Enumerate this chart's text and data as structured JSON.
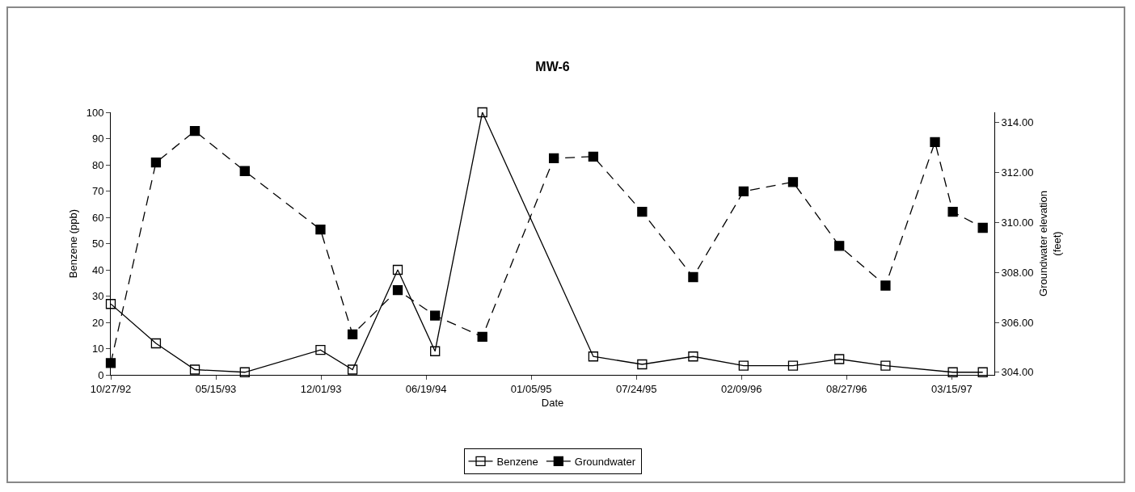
{
  "chart_data": {
    "type": "line",
    "title": "MW-6",
    "xlabel": "Date",
    "ylabel": "Benzene (ppb)",
    "y2label": "Groundwater elevation (feet)",
    "xlim": [
      "1992-10-27",
      "1997-06-04"
    ],
    "xticks": [
      {
        "value": "1992-10-27",
        "label": "10/27/92"
      },
      {
        "value": "1993-05-15",
        "label": "05/15/93"
      },
      {
        "value": "1993-12-01",
        "label": "12/01/93"
      },
      {
        "value": "1994-06-19",
        "label": "06/19/94"
      },
      {
        "value": "1995-01-05",
        "label": "01/05/95"
      },
      {
        "value": "1995-07-24",
        "label": "07/24/95"
      },
      {
        "value": "1996-02-09",
        "label": "02/09/96"
      },
      {
        "value": "1996-08-27",
        "label": "08/27/96"
      },
      {
        "value": "1997-03-15",
        "label": "03/15/97"
      }
    ],
    "ylim": [
      0,
      100
    ],
    "yticks": [
      0,
      10,
      20,
      30,
      40,
      50,
      60,
      70,
      80,
      90,
      100
    ],
    "y2lim": [
      303.9,
      314.4
    ],
    "y2ticks": [
      {
        "value": 304,
        "label": "304.00"
      },
      {
        "value": 306,
        "label": "306.00"
      },
      {
        "value": 308,
        "label": "308.00"
      },
      {
        "value": 310,
        "label": "310.00"
      },
      {
        "value": 312,
        "label": "312.00"
      },
      {
        "value": 314,
        "label": "314.00"
      }
    ],
    "grid": false,
    "legend": "bottom",
    "marker": "square",
    "series": [
      {
        "name": "Benzene",
        "color": "#000000",
        "line_style": "solid",
        "x": [
          "1992-10-27",
          "1993-01-21",
          "1993-04-05",
          "1993-07-09",
          "1993-11-30",
          "1994-01-30",
          "1994-04-26",
          "1994-07-06",
          "1994-10-04",
          "1995-05-03",
          "1995-08-04",
          "1995-11-09",
          "1996-02-13",
          "1996-05-17",
          "1996-08-13",
          "1996-11-09",
          "1997-03-17",
          "1997-05-13"
        ],
        "values": [
          27,
          12,
          2,
          1,
          9.5,
          2,
          40,
          9,
          100,
          7,
          4,
          7,
          3.5,
          3.5,
          6,
          3.5,
          1,
          1
        ]
      },
      {
        "name": "Groundwater",
        "color": "#000000",
        "line_style": "dashed",
        "axis": "y2",
        "x": [
          "1992-10-27",
          "1993-01-21",
          "1993-04-05",
          "1993-07-09",
          "1993-11-30",
          "1994-01-30",
          "1994-04-26",
          "1994-07-06",
          "1994-10-04",
          "1995-02-17",
          "1995-05-03",
          "1995-08-04",
          "1995-11-09",
          "1996-02-13",
          "1996-05-17",
          "1996-08-13",
          "1996-11-09",
          "1997-02-11",
          "1997-03-17",
          "1997-05-13"
        ],
        "values": [
          304.37,
          312.39,
          313.65,
          312.05,
          309.71,
          305.52,
          307.29,
          306.27,
          305.42,
          312.56,
          312.63,
          310.42,
          307.81,
          311.24,
          311.61,
          309.06,
          307.47,
          313.21,
          310.42,
          309.78
        ]
      }
    ]
  }
}
